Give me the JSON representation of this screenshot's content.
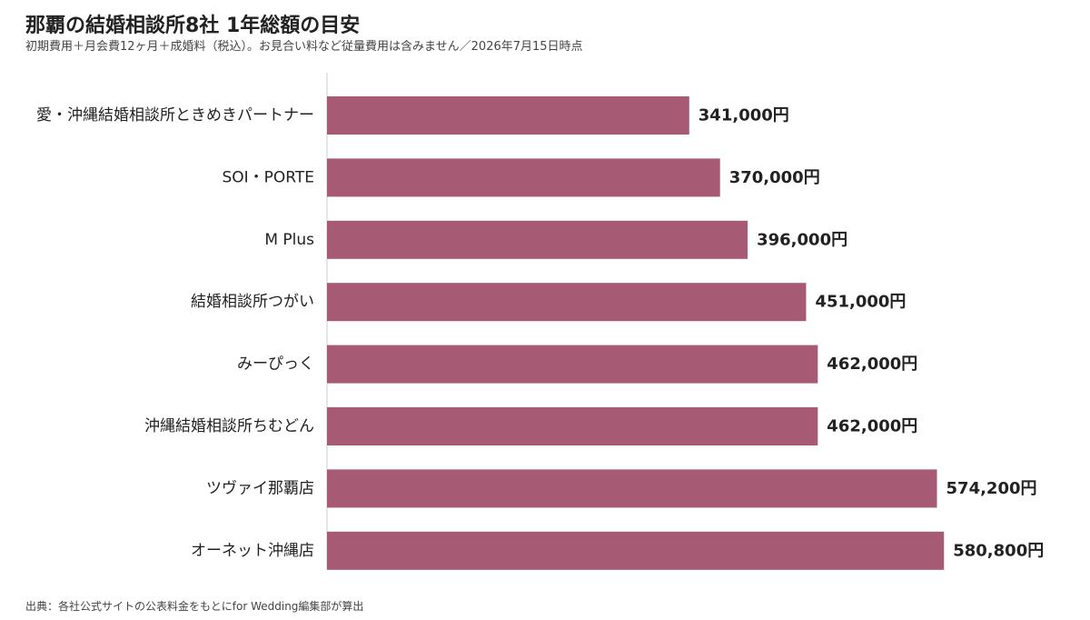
{
  "header": {
    "title": "那覇の結婚相談所8社 1年総額の目安",
    "subtitle": "初期費用＋月会費12ヶ月＋成婚料（税込）。お見合い料など従量費用は含みません／2026年7月15日時点"
  },
  "footer": {
    "source": "出典：各社公式サイトの公表料金をもとにfor Wedding編集部が算出"
  },
  "chart_data": {
    "type": "bar",
    "orientation": "horizontal",
    "title": "那覇の結婚相談所8社 1年総額の目安",
    "subtitle": "初期費用＋月会費12ヶ月＋成婚料（税込）。お見合い料など従量費用は含みません／2026年7月15日時点",
    "categories": [
      "愛・沖縄結婚相談所ときめきパートナー",
      "SOI・PORTE",
      "M Plus",
      "結婚相談所つがい",
      "みーぴっく",
      "沖縄結婚相談所ちむどん",
      "ツヴァイ那覇店",
      "オーネット沖縄店"
    ],
    "values": [
      341000,
      370000,
      396000,
      451000,
      462000,
      462000,
      574200,
      580800
    ],
    "value_labels": [
      "341,000円",
      "370,000円",
      "396,000円",
      "451,000円",
      "462,000円",
      "462,000円",
      "574,200円",
      "580,800円"
    ],
    "xlabel": "",
    "ylabel": "",
    "xlim": [
      0,
      590000
    ],
    "grid": false,
    "legend": "none",
    "bar_color": "#a65a73",
    "axis_color": "#cccccc"
  }
}
